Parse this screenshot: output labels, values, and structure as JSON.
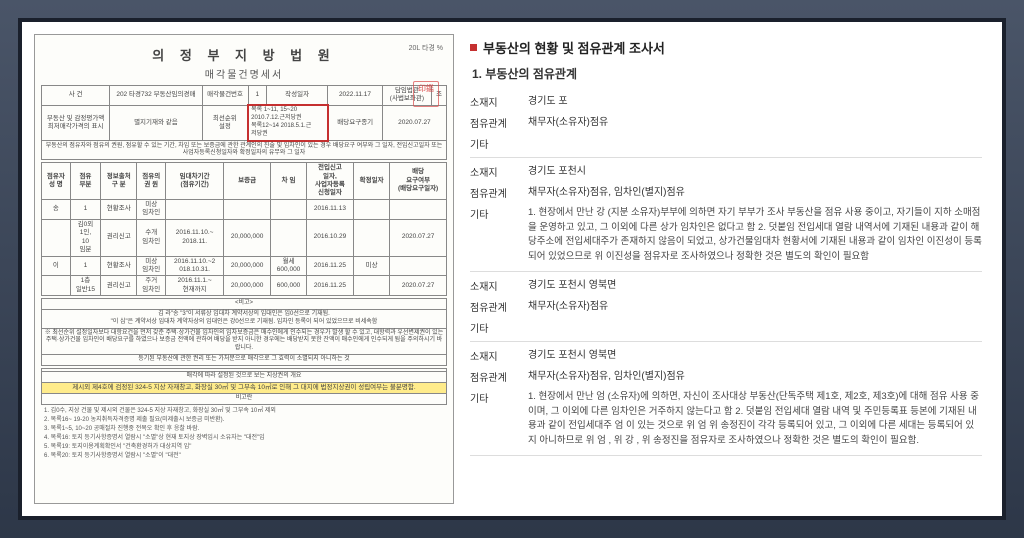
{
  "left": {
    "court": "의 정 부 지 방 법 원",
    "subtitle": "매각물건명세서",
    "topRight": "20L 타경   %",
    "seal": "印鑑",
    "header": {
      "caseLabel": "사 건",
      "caseNum": "202 타경732 부동산임의경매",
      "saleNum": "매각물건번호",
      "one": "1",
      "writeDate": "작성일자",
      "date": "2022.11.17",
      "judgeLabel": "담임법관\n(사법보좌관)",
      "judge": "조"
    },
    "row2": {
      "lbl1": "부동산 및 감정평가액\n최저매각가격의 표시",
      "v1": "별지기재와 같음",
      "lbl2": "최선순위\n설정",
      "redBox": "목록 1~11, 15~20\n2010.7.12.근저당권\n목록12~14  2018.5.1.근\n저당권",
      "lbl3": "배당요구종기",
      "v3": "2020.07.27"
    },
    "descRow": "부동산의 점유자와 점유의 권원, 점유할 수 있는 기간, 차임 또는 보증금에 관한 관계인의 진술 및 임차인이 있는 경우 배당요구 여부와 그 일자, 전입신고일자 또는 사업자등록신청일자와 확정일자의 유무와 그 일자",
    "cols": [
      "점유자\n성 명",
      "점유\n부분",
      "정보출처\n구 분",
      "점유의\n권 원",
      "임대차기간\n(점유기간)",
      "보증금",
      "차 임",
      "전입신고\n일자,\n사업자등록\n신청일자",
      "확정일자",
      "배당\n요구여부\n(배당요구일자)"
    ],
    "rows": [
      [
        "송",
        "1",
        "현황조사",
        "미상\n임차인",
        "",
        "",
        "",
        "2016.11.13",
        "",
        ""
      ],
      [
        "",
        "김0외\n1인,\n10\n임분",
        "권리신고",
        "수개\n임차인",
        "2016.11.10.~\n2018.11.",
        "20,000,000",
        "",
        "2016.10.29",
        "",
        "2020.07.27"
      ],
      [
        "이",
        "1",
        "현황조사",
        "미상\n임차인",
        "2016.11.10.~2\n018.10.31.",
        "20,000,000",
        "월세\n600,000",
        "2016.11.25",
        "미상",
        ""
      ],
      [
        "",
        "1층\n일반15",
        "권리신고",
        "주거\n임차인",
        "2016.11.1.~\n현재까지",
        "20,000,000",
        "600,000",
        "2016.11.25",
        "",
        "2020.07.27"
      ]
    ],
    "bigo": "<비고>",
    "bigoText": "김   라\"송   \"3\"이 서류상 임대차 계약서상의 임대인은 임0선으로 기재됨.\n\"이   심\"은 계약서상 임대차 계약자상의 임대인은 강0선으로 기재됨. 임차인 등록이 되어 있었으므로 비세속함",
    "noticeBox": "※ 최선순위 설정일자보다 대항요건을 먼저 갖춘 주택·상가건물 임차인의 임차보증금은 매수인에게 인수되는 경우가 발생 할 수 있고, 대항력과 우선변제권이 있는 주택·상가건물 임차인이 배당요구를 하였으나 보증금 전액에 관하여 배당을 받지 아니한 경우에는 배당받지 못한 잔액이 매수인에게 인수되게 됨을 주의하시기 바랍니다.",
    "subLine": "등기된 부동산에 관한 권리 또는 가처분으로 매각으로 그 효력이 소멸되지 아니하는 것",
    "sectionHead": "매각에 따라 설정된 것으로 보는 지상권의 개요",
    "highlight": "제시외 제4호에 검정된 324-5 지상 자재창고, 화장실 30㎡ 및 그부속 10㎡로 인해 그 대지에 법정지상권이 성립여부는 불분명함.",
    "bigo2": "비고란",
    "footerLines": [
      "1. 김0수, 지상 건물 및 제시외 건물은 324-5 지상 자재창고, 화장실 30㎡ 및 그부속 10㎡ 제외",
      "2. 목록16~ 19-20 농지취득자격증명 제출 필요(미제출시 보증금 미반환).",
      "3. 목록1~5, 10~20 공매절차 진행중 전복오 확인 후 응찰 바람.",
      "4. 목록16: 토지 등기사항증명서 열람시 \"소멸\"상 현재 토지상 장벽임시 소유자는 \"대전\"임",
      "5. 목록19: 토지이용계획확인서 \"건축환경허가 대상지역 임\"",
      "6. 목록20: 토지 등기사항증명서 열람시 \"소멸\"이 \"대전\""
    ]
  },
  "right": {
    "mainTitle": "부동산의 현황 및 점유관계 조사서",
    "section": "1. 부동산의 점유관계",
    "blocks": [
      {
        "loc": "경기도 포",
        "rel": "채무자(소유자)점유",
        "etc": ""
      },
      {
        "loc": "경기도 포천시",
        "rel": "채무자(소유자)점유, 임차인(별지)점유",
        "etc": "1. 현장에서 만난 강    (지분 소유자)부부에 의하면 자기 부부가 조사 부동산을 점유 사용 중이고, 자기들이 지하 소매점을 운영하고 있고, 그 이외에 다른 상가 임차인은 없다고 함 2. 덧붙임 전입세대 열람 내역서에 기재된 내용과 같이 해당주소에 전입세대주가 존재하지 않음이 되었고, 상가건물임대차 현황서에 기재된 내용과 같이 임차인 이진성이 등록되어 있었으므로 위 이진성을 점유자로 조사하였으나 정확한 것은 별도의 확인이 필요함"
      },
      {
        "loc": "경기도 포천시 영북면",
        "rel": "채무자(소유자)점유",
        "etc": ""
      },
      {
        "loc": "경기도 포천시 영북면",
        "rel": "채무자(소유자)점유, 임차인(별지)점유",
        "etc": "1. 현장에서 만난 엄   (소유자)에 의하면, 자신이 조사대상 부동산(단독주택 제1호, 제2호, 제3호)에 대해 점유 사용 중이며, 그 이외에 다른 임차인은 거주하지 않는다고 함 2. 덧붙임 전입세대 열람 내역 및 주민등록표 등본에 기재된 내용과 같이 전입세대주 엄   이 있는 것으로 위 엄    위 송정진이 각각 등록되어 있고, 그 이외에 다른 세대는 등록되어 있지 아니하므로 위 엄   , 위 강   , 위 송정진을 점유자로 조사하였으나 정확한 것은 별도의 확인이 필요함."
      }
    ],
    "labels": {
      "loc": "소재지",
      "rel": "점유관계",
      "etc": "기타"
    }
  }
}
